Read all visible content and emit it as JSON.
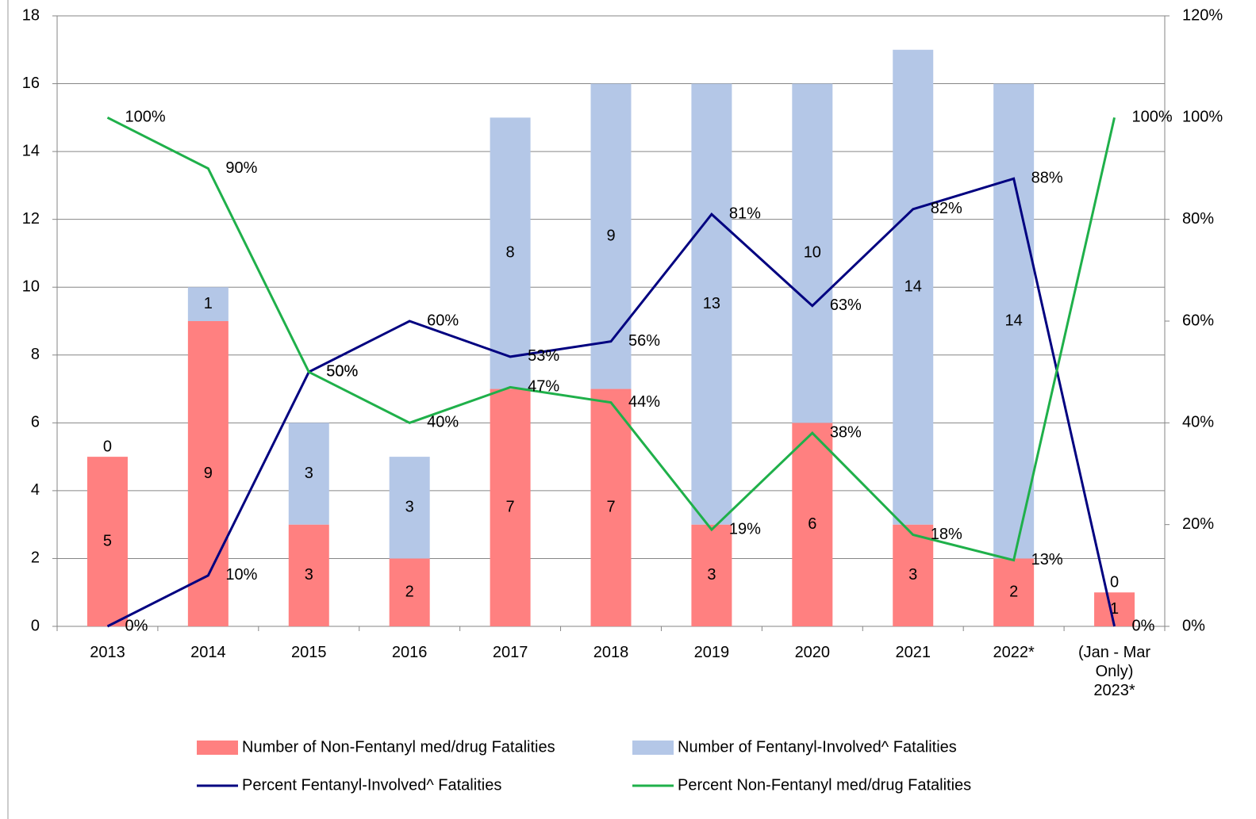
{
  "chart_data": {
    "type": "bar",
    "stacked": true,
    "categories": [
      "2013",
      "2014",
      "2015",
      "2016",
      "2017",
      "2018",
      "2019",
      "2020",
      "2021",
      "2022*",
      "(Jan - Mar\nOnly)\n2023*"
    ],
    "series": [
      {
        "name": "Number of Non-Fentanyl med/drug Fatalities",
        "type": "bar",
        "color": "#ff8080",
        "values": [
          5,
          9,
          3,
          2,
          7,
          7,
          3,
          6,
          3,
          2,
          1
        ]
      },
      {
        "name": "Number of Fentanyl-Involved^ Fatalities",
        "type": "bar",
        "color": "#b4c7e7",
        "values": [
          0,
          1,
          3,
          3,
          8,
          9,
          13,
          10,
          14,
          14,
          0
        ]
      },
      {
        "name": "Percent Fentanyl-Involved^ Fatalities",
        "type": "line",
        "axis": "y2",
        "color": "#000080",
        "values": [
          0,
          10,
          50,
          60,
          53,
          56,
          81,
          63,
          82,
          88,
          0
        ],
        "value_labels": [
          "0%",
          "10%",
          "50%",
          "60%",
          "53%",
          "56%",
          "81%",
          "63%",
          "82%",
          "88%",
          "0%"
        ]
      },
      {
        "name": "Percent Non-Fentanyl med/drug Fatalities",
        "type": "line",
        "axis": "y2",
        "color": "#1fb04a",
        "values": [
          100,
          90,
          50,
          40,
          47,
          44,
          19,
          38,
          18,
          13,
          100
        ],
        "value_labels": [
          "100%",
          "90%",
          "50%",
          "40%",
          "47%",
          "44%",
          "19%",
          "38%",
          "18%",
          "13%",
          "100%"
        ]
      }
    ],
    "ylim": [
      0,
      18
    ],
    "yticks": [
      0,
      2,
      4,
      6,
      8,
      10,
      12,
      14,
      16,
      18
    ],
    "y2lim": [
      0,
      120
    ],
    "y2ticks": [
      {
        "value": 0,
        "label": "0%"
      },
      {
        "value": 20,
        "label": "20%"
      },
      {
        "value": 40,
        "label": "40%"
      },
      {
        "value": 60,
        "label": "60%"
      },
      {
        "value": 80,
        "label": "80%"
      },
      {
        "value": 100,
        "label": "100%"
      },
      {
        "value": 120,
        "label": "120%"
      }
    ],
    "grid": true
  }
}
